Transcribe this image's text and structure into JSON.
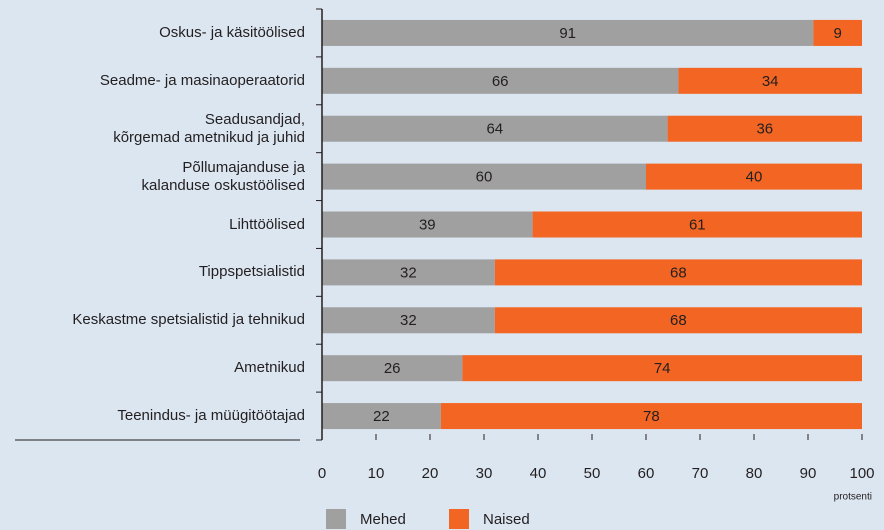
{
  "chart_data": {
    "type": "stacked_bar_horizontal",
    "categories": [
      "Oskus- ja käsitöölised",
      "Seadme- ja masinaoperaatorid",
      "Seadusandjad,\nkõrgemad ametnikud ja juhid",
      "Põllumajanduse ja\nkalanduse oskustöölised",
      "Lihttöölised",
      "Tippspetsialistid",
      "Keskastme spetsialistid ja tehnikud",
      "Ametnikud",
      "Teenindus- ja müügitöötajad"
    ],
    "series": [
      {
        "name": "Mehed",
        "color": "#a0a0a0",
        "values": [
          91,
          66,
          64,
          60,
          39,
          32,
          32,
          26,
          22
        ]
      },
      {
        "name": "Naised",
        "color": "#f26522",
        "values": [
          9,
          34,
          36,
          40,
          61,
          68,
          68,
          74,
          78
        ]
      }
    ],
    "xlabel": "protsenti",
    "xlim": [
      0,
      100
    ],
    "xticks": [
      0,
      10,
      20,
      30,
      40,
      50,
      60,
      70,
      80,
      90,
      100
    ],
    "legend": "bottom"
  }
}
